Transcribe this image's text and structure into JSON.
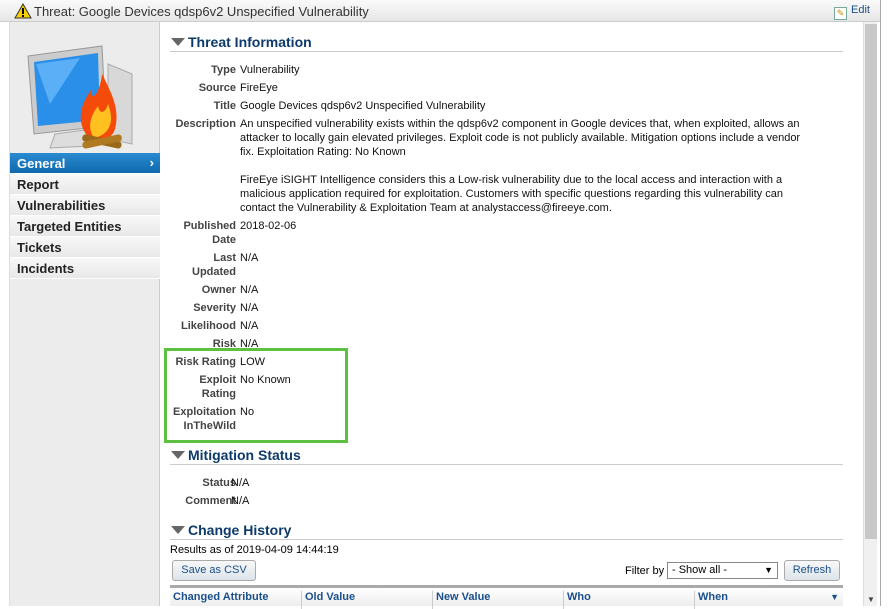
{
  "window": {
    "title": "Threat: Google Devices qdsp6v2 Unspecified Vulnerability",
    "edit_label": "Edit"
  },
  "sidebar": {
    "items": [
      {
        "label": "General",
        "active": true
      },
      {
        "label": "Report"
      },
      {
        "label": "Vulnerabilities"
      },
      {
        "label": "Targeted Entities"
      },
      {
        "label": "Tickets"
      },
      {
        "label": "Incidents"
      }
    ]
  },
  "threat_info": {
    "heading": "Threat Information",
    "fields": [
      {
        "label": "Type",
        "value": "Vulnerability"
      },
      {
        "label": "Source",
        "value": "FireEye"
      },
      {
        "label": "Title",
        "value": "Google Devices qdsp6v2 Unspecified Vulnerability"
      },
      {
        "label": "Description",
        "value": "An unspecified vulnerability exists within the qdsp6v2 component in Google devices that, when exploited, allows an attacker to locally gain elevated privileges. Exploit code is not publicly available. Mitigation options include a vendor fix. Exploitation Rating: No Known",
        "value2": "FireEye iSIGHT Intelligence considers this a Low-risk vulnerability due to the local access and interaction with a malicious application required for exploitation. Customers with specific questions regarding this vulnerability can contact the Vulnerability & Exploitation Team at analystaccess@fireeye.com."
      },
      {
        "label": "Published Date",
        "value": "2018-02-06"
      },
      {
        "label": "Last Updated",
        "value": "N/A"
      },
      {
        "label": "Owner",
        "value": "N/A"
      },
      {
        "label": "Severity",
        "value": "N/A"
      },
      {
        "label": "Likelihood",
        "value": "N/A"
      },
      {
        "label": "Risk",
        "value": "N/A"
      },
      {
        "label": "Risk Rating",
        "value": "LOW"
      },
      {
        "label": "Exploit Rating",
        "value": "No Known"
      },
      {
        "label": "Exploitation InTheWild",
        "value": "No"
      }
    ]
  },
  "mitigation": {
    "heading": "Mitigation Status",
    "fields": [
      {
        "label": "Status",
        "value": "N/A"
      },
      {
        "label": "Comment",
        "value": "N/A"
      }
    ]
  },
  "history": {
    "heading": "Change History",
    "results_text": "Results as of 2019-04-09 14:44:19",
    "save_csv": "Save as CSV",
    "filter_label": "Filter by",
    "filter_value": "- Show all -",
    "refresh": "Refresh",
    "columns": [
      "Changed Attribute",
      "Old Value",
      "New Value",
      "Who",
      "When"
    ]
  },
  "colors": {
    "accent": "#0f68ad",
    "highlight": "#5cc141",
    "heading": "#0c3a6b"
  }
}
